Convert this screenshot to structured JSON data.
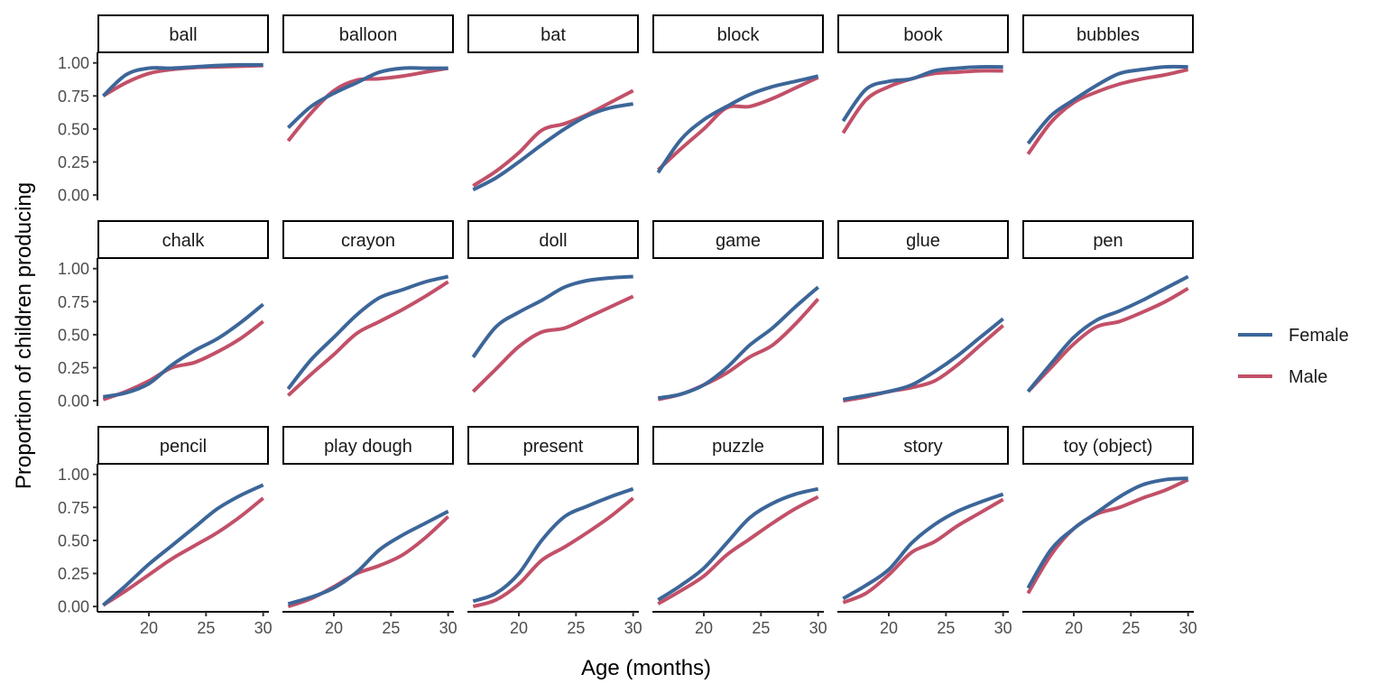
{
  "chart_data": {
    "type": "line",
    "xlabel": "Age (months)",
    "ylabel": "Proportion of children producing",
    "xlim": [
      15.5,
      30.5
    ],
    "ylim": [
      -0.04,
      1.08
    ],
    "x_ticks": [
      20,
      25,
      30
    ],
    "y_ticks": [
      0,
      0.25,
      0.5,
      0.75,
      1
    ],
    "y_tick_labels": [
      "0.00",
      "0.25",
      "0.50",
      "0.75",
      "1.00"
    ],
    "grid": false,
    "legend_position": "right",
    "x": [
      16,
      18,
      20,
      22,
      24,
      26,
      28,
      30
    ],
    "series_names": [
      "Female",
      "Male"
    ],
    "colors": {
      "Female": "#3c6699",
      "Male": "#c25068"
    },
    "panels": [
      {
        "label": "ball",
        "Female": [
          0.75,
          0.91,
          0.96,
          0.96,
          0.97,
          0.98,
          0.985,
          0.985
        ],
        "Male": [
          0.75,
          0.85,
          0.92,
          0.95,
          0.965,
          0.97,
          0.975,
          0.98
        ]
      },
      {
        "label": "balloon",
        "Female": [
          0.51,
          0.67,
          0.77,
          0.85,
          0.93,
          0.96,
          0.96,
          0.96
        ],
        "Male": [
          0.41,
          0.62,
          0.79,
          0.87,
          0.88,
          0.9,
          0.93,
          0.96
        ]
      },
      {
        "label": "bat",
        "Female": [
          0.04,
          0.13,
          0.25,
          0.38,
          0.5,
          0.6,
          0.66,
          0.69
        ],
        "Male": [
          0.07,
          0.18,
          0.32,
          0.49,
          0.54,
          0.61,
          0.7,
          0.79
        ]
      },
      {
        "label": "block",
        "Female": [
          0.17,
          0.42,
          0.57,
          0.67,
          0.76,
          0.82,
          0.86,
          0.9
        ],
        "Male": [
          0.19,
          0.35,
          0.5,
          0.66,
          0.67,
          0.73,
          0.81,
          0.89
        ]
      },
      {
        "label": "book",
        "Female": [
          0.56,
          0.8,
          0.86,
          0.88,
          0.94,
          0.96,
          0.97,
          0.97
        ],
        "Male": [
          0.47,
          0.72,
          0.82,
          0.88,
          0.92,
          0.93,
          0.94,
          0.94
        ]
      },
      {
        "label": "bubbles",
        "Female": [
          0.39,
          0.6,
          0.72,
          0.83,
          0.92,
          0.95,
          0.97,
          0.97
        ],
        "Male": [
          0.31,
          0.55,
          0.7,
          0.78,
          0.84,
          0.88,
          0.91,
          0.95
        ]
      },
      {
        "label": "chalk",
        "Female": [
          0.03,
          0.06,
          0.13,
          0.27,
          0.38,
          0.47,
          0.59,
          0.73
        ],
        "Male": [
          0.01,
          0.07,
          0.15,
          0.25,
          0.29,
          0.37,
          0.47,
          0.6
        ]
      },
      {
        "label": "crayon",
        "Female": [
          0.09,
          0.31,
          0.48,
          0.65,
          0.78,
          0.84,
          0.9,
          0.94
        ],
        "Male": [
          0.04,
          0.2,
          0.35,
          0.51,
          0.6,
          0.69,
          0.79,
          0.9
        ]
      },
      {
        "label": "doll",
        "Female": [
          0.33,
          0.56,
          0.67,
          0.76,
          0.86,
          0.91,
          0.93,
          0.94
        ],
        "Male": [
          0.07,
          0.24,
          0.41,
          0.52,
          0.55,
          0.63,
          0.71,
          0.79
        ]
      },
      {
        "label": "game",
        "Female": [
          0.02,
          0.05,
          0.12,
          0.25,
          0.42,
          0.55,
          0.71,
          0.86
        ],
        "Male": [
          0.01,
          0.05,
          0.12,
          0.21,
          0.33,
          0.42,
          0.58,
          0.77
        ]
      },
      {
        "label": "glue",
        "Female": [
          0.01,
          0.04,
          0.07,
          0.12,
          0.22,
          0.34,
          0.48,
          0.62
        ],
        "Male": [
          0.0,
          0.03,
          0.07,
          0.1,
          0.15,
          0.27,
          0.42,
          0.57
        ]
      },
      {
        "label": "pen",
        "Female": [
          0.07,
          0.28,
          0.48,
          0.61,
          0.68,
          0.76,
          0.85,
          0.94
        ],
        "Male": [
          0.07,
          0.25,
          0.43,
          0.56,
          0.6,
          0.67,
          0.75,
          0.85
        ]
      },
      {
        "label": "pencil",
        "Female": [
          0.01,
          0.16,
          0.32,
          0.46,
          0.6,
          0.74,
          0.84,
          0.92
        ],
        "Male": [
          0.01,
          0.12,
          0.24,
          0.36,
          0.46,
          0.56,
          0.68,
          0.82
        ]
      },
      {
        "label": "play dough",
        "Female": [
          0.02,
          0.07,
          0.14,
          0.26,
          0.43,
          0.54,
          0.63,
          0.72
        ],
        "Male": [
          0.0,
          0.06,
          0.15,
          0.25,
          0.31,
          0.39,
          0.52,
          0.68
        ]
      },
      {
        "label": "present",
        "Female": [
          0.04,
          0.1,
          0.25,
          0.5,
          0.68,
          0.76,
          0.83,
          0.89
        ],
        "Male": [
          0.0,
          0.05,
          0.17,
          0.35,
          0.45,
          0.56,
          0.68,
          0.82
        ]
      },
      {
        "label": "puzzle",
        "Female": [
          0.05,
          0.16,
          0.29,
          0.48,
          0.67,
          0.78,
          0.85,
          0.89
        ],
        "Male": [
          0.02,
          0.12,
          0.23,
          0.39,
          0.51,
          0.63,
          0.74,
          0.83
        ]
      },
      {
        "label": "story",
        "Female": [
          0.06,
          0.16,
          0.28,
          0.48,
          0.62,
          0.72,
          0.79,
          0.85
        ],
        "Male": [
          0.03,
          0.1,
          0.24,
          0.41,
          0.49,
          0.61,
          0.71,
          0.81
        ]
      },
      {
        "label": "toy (object)",
        "Female": [
          0.14,
          0.43,
          0.59,
          0.71,
          0.83,
          0.92,
          0.96,
          0.97
        ],
        "Male": [
          0.1,
          0.39,
          0.59,
          0.7,
          0.75,
          0.82,
          0.88,
          0.96
        ]
      }
    ]
  }
}
